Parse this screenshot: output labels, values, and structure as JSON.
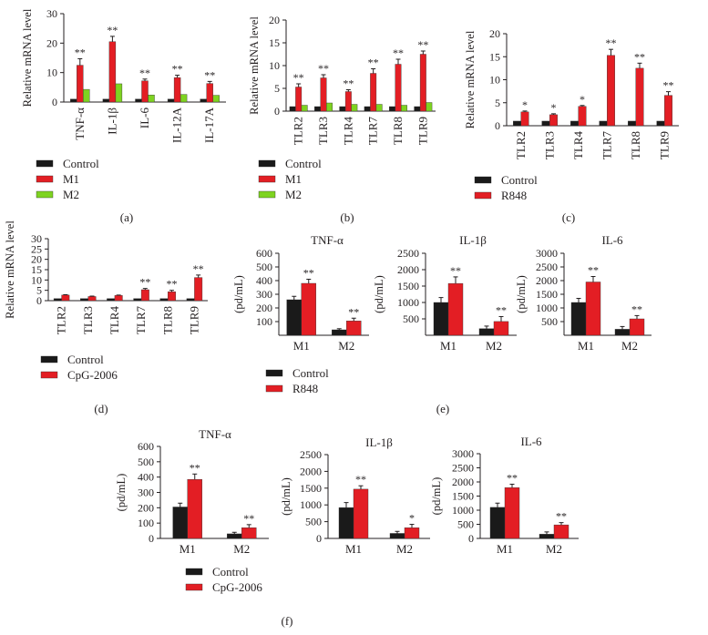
{
  "figure": {
    "colors": {
      "control": "#1a1a1a",
      "m1": "#e31e24",
      "m2": "#7ed321",
      "axis": "#231f20"
    },
    "panel_labels": [
      "(a)",
      "(b)",
      "(c)",
      "(d)",
      "(e)",
      "(f)"
    ]
  },
  "chart_data": [
    {
      "id": "a",
      "type": "bar",
      "panel_label": "(a)",
      "ylabel": "Relative mRNA level",
      "ylim": [
        0,
        30
      ],
      "yticks": [
        0,
        10,
        20,
        30
      ],
      "categories": [
        "TNF-α",
        "IL-1β",
        "IL-6",
        "IL-12A",
        "IL-17A"
      ],
      "series": [
        {
          "name": "Control",
          "values": [
            1,
            1,
            1,
            1,
            1
          ],
          "errors": [
            0,
            0,
            0,
            0,
            0
          ]
        },
        {
          "name": "M1",
          "values": [
            12.5,
            20.5,
            7.2,
            8.3,
            6.3
          ],
          "errors": [
            2.2,
            1.8,
            0.6,
            0.8,
            0.7
          ]
        },
        {
          "name": "M2",
          "values": [
            4.3,
            6.2,
            2.4,
            2.6,
            2.3
          ],
          "errors": [
            0,
            0,
            0,
            0,
            0
          ]
        }
      ],
      "annotations": [
        {
          "series": 1,
          "labels": [
            "**",
            "**",
            "**",
            "**",
            "**"
          ]
        }
      ],
      "legend": [
        "Control",
        "M1",
        "M2"
      ]
    },
    {
      "id": "b",
      "type": "bar",
      "panel_label": "(b)",
      "ylabel": "Relative mRNA level",
      "ylim": [
        0,
        20
      ],
      "yticks": [
        0,
        5,
        10,
        15,
        20
      ],
      "categories": [
        "TLR2",
        "TLR3",
        "TLR4",
        "TLR7",
        "TLR8",
        "TLR9"
      ],
      "series": [
        {
          "name": "Control",
          "values": [
            1,
            1,
            1,
            1,
            1,
            1
          ],
          "errors": [
            0,
            0,
            0,
            0,
            0,
            0
          ]
        },
        {
          "name": "M1",
          "values": [
            5.3,
            7.3,
            4.3,
            8.3,
            10.3,
            12.5
          ],
          "errors": [
            0.7,
            0.7,
            0.4,
            1.0,
            1.1,
            0.7
          ]
        },
        {
          "name": "M2",
          "values": [
            1.3,
            1.8,
            1.5,
            1.5,
            1.3,
            1.9
          ],
          "errors": [
            0,
            0,
            0,
            0,
            0,
            0
          ]
        }
      ],
      "annotations": [
        {
          "series": 1,
          "labels": [
            "**",
            "**",
            "**",
            "**",
            "**",
            "**"
          ]
        }
      ],
      "legend": [
        "Control",
        "M1",
        "M2"
      ]
    },
    {
      "id": "c",
      "type": "bar",
      "panel_label": "(c)",
      "ylabel": "Relative mRNA level",
      "ylim": [
        0,
        20
      ],
      "yticks": [
        0,
        5,
        10,
        15,
        20
      ],
      "categories": [
        "TLR2",
        "TLR3",
        "TLR4",
        "TLR7",
        "TLR8",
        "TLR9"
      ],
      "series": [
        {
          "name": "Control",
          "values": [
            1,
            1,
            1,
            1,
            1,
            1
          ],
          "errors": [
            0,
            0,
            0,
            0,
            0,
            0
          ]
        },
        {
          "name": "R848",
          "values": [
            3.0,
            2.4,
            4.2,
            15.3,
            12.5,
            6.6
          ],
          "errors": [
            0.2,
            0.2,
            0.2,
            1.3,
            1.1,
            0.8
          ]
        }
      ],
      "annotations": [
        {
          "series": 1,
          "labels": [
            "*",
            "*",
            "*",
            "**",
            "**",
            "**"
          ]
        }
      ],
      "legend": [
        "Control",
        "R848"
      ]
    },
    {
      "id": "d",
      "type": "bar",
      "panel_label": "(d)",
      "ylabel": "Relative mRNA level",
      "ylim": [
        0,
        30
      ],
      "yticks": [
        0,
        5,
        10,
        15,
        20,
        25,
        30
      ],
      "categories": [
        "TLR2",
        "TLR3",
        "TLR4",
        "TLR7",
        "TLR8",
        "TLR9"
      ],
      "series": [
        {
          "name": "Control",
          "values": [
            1,
            1,
            1,
            1,
            1,
            1
          ],
          "errors": [
            0,
            0,
            0,
            0,
            0,
            0
          ]
        },
        {
          "name": "CpG-2006",
          "values": [
            2.7,
            2.0,
            2.5,
            5.3,
            4.3,
            11.2
          ],
          "errors": [
            0.2,
            0.2,
            0.2,
            0.6,
            0.7,
            1.2
          ]
        }
      ],
      "annotations": [
        {
          "series": 1,
          "labels": [
            "",
            "",
            "",
            "**",
            "**",
            "**"
          ]
        }
      ],
      "legend": [
        "Control",
        "CpG-2006"
      ]
    },
    {
      "id": "e1",
      "type": "bar",
      "title": "TNF-α",
      "ylabel": "(pd/mL)",
      "ylim": [
        0,
        600
      ],
      "yticks": [
        100,
        200,
        300,
        400,
        500,
        600
      ],
      "categories": [
        "M1",
        "M2"
      ],
      "series": [
        {
          "name": "Control",
          "values": [
            260,
            40
          ],
          "errors": [
            25,
            8
          ]
        },
        {
          "name": "R848",
          "values": [
            380,
            105
          ],
          "errors": [
            30,
            20
          ]
        }
      ],
      "annotations": [
        {
          "series": 1,
          "labels": [
            "**",
            "**"
          ]
        }
      ]
    },
    {
      "id": "e2",
      "type": "bar",
      "title": "IL-1β",
      "ylabel": "(pd/mL)",
      "ylim": [
        0,
        2500
      ],
      "yticks": [
        500,
        1000,
        1500,
        2000,
        2500
      ],
      "categories": [
        "M1",
        "M2"
      ],
      "series": [
        {
          "name": "Control",
          "values": [
            1000,
            200
          ],
          "errors": [
            150,
            80
          ]
        },
        {
          "name": "R848",
          "values": [
            1580,
            420
          ],
          "errors": [
            200,
            150
          ]
        }
      ],
      "annotations": [
        {
          "series": 1,
          "labels": [
            "**",
            "**"
          ]
        }
      ]
    },
    {
      "id": "e3",
      "type": "bar",
      "title": "IL-6",
      "ylabel": "(pd/mL)",
      "ylim": [
        0,
        3000
      ],
      "yticks": [
        500,
        1000,
        1500,
        2000,
        2500,
        3000
      ],
      "categories": [
        "M1",
        "M2"
      ],
      "series": [
        {
          "name": "Control",
          "values": [
            1200,
            220
          ],
          "errors": [
            150,
            100
          ]
        },
        {
          "name": "R848",
          "values": [
            1950,
            600
          ],
          "errors": [
            200,
            120
          ]
        }
      ],
      "annotations": [
        {
          "series": 1,
          "labels": [
            "**",
            "**"
          ]
        }
      ],
      "legend": [
        "Control",
        "R848"
      ],
      "panel_label": "(e)"
    },
    {
      "id": "f1",
      "type": "bar",
      "title": "TNF-α",
      "ylabel": "(pd/mL)",
      "ylim": [
        0,
        600
      ],
      "yticks": [
        0,
        100,
        200,
        300,
        400,
        500,
        600
      ],
      "categories": [
        "M1",
        "M2"
      ],
      "series": [
        {
          "name": "Control",
          "values": [
            205,
            30
          ],
          "errors": [
            25,
            10
          ]
        },
        {
          "name": "CpG-2006",
          "values": [
            385,
            70
          ],
          "errors": [
            35,
            20
          ]
        }
      ],
      "annotations": [
        {
          "series": 1,
          "labels": [
            "**",
            "**"
          ]
        }
      ]
    },
    {
      "id": "f2",
      "type": "bar",
      "title": "IL-1β",
      "ylabel": "(pd/mL)",
      "ylim": [
        0,
        2500
      ],
      "yticks": [
        0,
        500,
        1000,
        1500,
        2000,
        2500
      ],
      "categories": [
        "M1",
        "M2"
      ],
      "series": [
        {
          "name": "Control",
          "values": [
            920,
            150
          ],
          "errors": [
            150,
            60
          ]
        },
        {
          "name": "CpG-2006",
          "values": [
            1470,
            320
          ],
          "errors": [
            100,
            100
          ]
        }
      ],
      "annotations": [
        {
          "series": 1,
          "labels": [
            "**",
            "*"
          ]
        }
      ]
    },
    {
      "id": "f3",
      "type": "bar",
      "title": "IL-6",
      "ylabel": "(pd/mL)",
      "ylim": [
        0,
        3000
      ],
      "yticks": [
        0,
        500,
        1000,
        1500,
        2000,
        2500,
        3000
      ],
      "categories": [
        "M1",
        "M2"
      ],
      "series": [
        {
          "name": "Control",
          "values": [
            1100,
            150
          ],
          "errors": [
            150,
            80
          ]
        },
        {
          "name": "CpG-2006",
          "values": [
            1800,
            480
          ],
          "errors": [
            120,
            80
          ]
        }
      ],
      "annotations": [
        {
          "series": 1,
          "labels": [
            "**",
            "**"
          ]
        }
      ],
      "legend": [
        "Control",
        "CpG-2006"
      ],
      "panel_label": "(f)"
    }
  ]
}
